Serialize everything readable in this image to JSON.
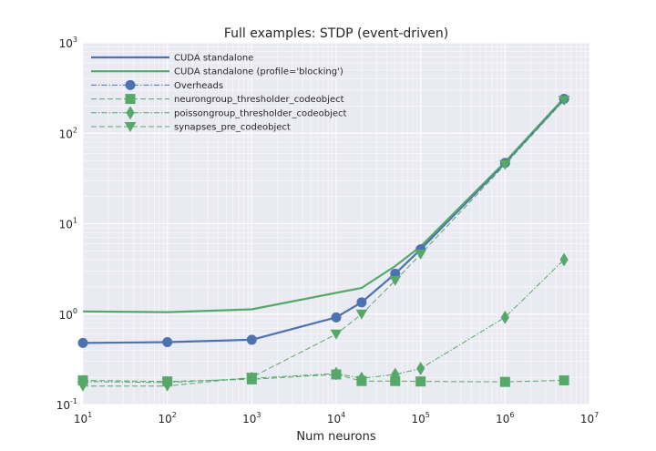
{
  "chart_data": {
    "type": "line",
    "title": "Full examples: STDP (event-driven)",
    "xlabel": "Num neurons",
    "ylabel": "",
    "x_scale": "log",
    "y_scale": "log",
    "xlim": [
      10,
      10000000
    ],
    "ylim": [
      0.1,
      1000
    ],
    "grid": true,
    "legend_position": "top-left",
    "x_ticks": [
      {
        "base": "10",
        "exp": "1"
      },
      {
        "base": "10",
        "exp": "2"
      },
      {
        "base": "10",
        "exp": "3"
      },
      {
        "base": "10",
        "exp": "4"
      },
      {
        "base": "10",
        "exp": "5"
      },
      {
        "base": "10",
        "exp": "6"
      },
      {
        "base": "10",
        "exp": "7"
      }
    ],
    "y_ticks": [
      {
        "base": "10",
        "exp": "-1"
      },
      {
        "base": "10",
        "exp": "0"
      },
      {
        "base": "10",
        "exp": "1"
      },
      {
        "base": "10",
        "exp": "2"
      },
      {
        "base": "10",
        "exp": "3"
      }
    ],
    "series": [
      {
        "name": "CUDA standalone",
        "color": "#4C72B0",
        "style": "solid",
        "marker": "none",
        "x": [
          10,
          100,
          1000,
          10000,
          20000,
          50000,
          100000,
          1000000,
          5000000
        ],
        "y": [
          0.48,
          0.49,
          0.52,
          0.92,
          1.35,
          2.8,
          5.2,
          47,
          240
        ]
      },
      {
        "name": "CUDA standalone (profile='blocking')",
        "color": "#55A868",
        "style": "solid",
        "marker": "none",
        "x": [
          10,
          100,
          1000,
          20000,
          50000,
          100000,
          1000000,
          5000000
        ],
        "y": [
          1.07,
          1.05,
          1.13,
          1.95,
          3.4,
          5.6,
          48,
          245
        ]
      },
      {
        "name": "Overheads",
        "color": "#4C72B0",
        "style": "dashdot",
        "marker": "circle",
        "x": [
          10,
          100,
          1000,
          10000,
          20000,
          50000,
          100000,
          1000000,
          5000000
        ],
        "y": [
          0.48,
          0.49,
          0.52,
          0.92,
          1.35,
          2.8,
          5.2,
          47,
          240
        ]
      },
      {
        "name": "neurongroup_thresholder_codeobject",
        "color": "#55A868",
        "style": "dashed",
        "marker": "square",
        "x": [
          10,
          100,
          1000,
          10000,
          20000,
          50000,
          100000,
          1000000,
          5000000
        ],
        "y": [
          0.185,
          0.18,
          0.19,
          0.215,
          0.182,
          0.182,
          0.18,
          0.178,
          0.185
        ]
      },
      {
        "name": "poissongroup_thresholder_codeobject",
        "color": "#55A868",
        "style": "dashdot",
        "marker": "diamond",
        "x": [
          10,
          100,
          1000,
          10000,
          20000,
          50000,
          100000,
          1000000,
          5000000
        ],
        "y": [
          0.18,
          0.175,
          0.195,
          0.22,
          0.195,
          0.215,
          0.25,
          0.92,
          4.0
        ]
      },
      {
        "name": "synapses_pre_codeobject",
        "color": "#55A868",
        "style": "dashed",
        "marker": "triangle-down",
        "x": [
          10,
          100,
          1000,
          10000,
          20000,
          50000,
          100000,
          1000000,
          5000000
        ],
        "y": [
          0.16,
          0.16,
          0.2,
          0.6,
          1.0,
          2.35,
          4.6,
          45,
          232
        ]
      }
    ]
  }
}
